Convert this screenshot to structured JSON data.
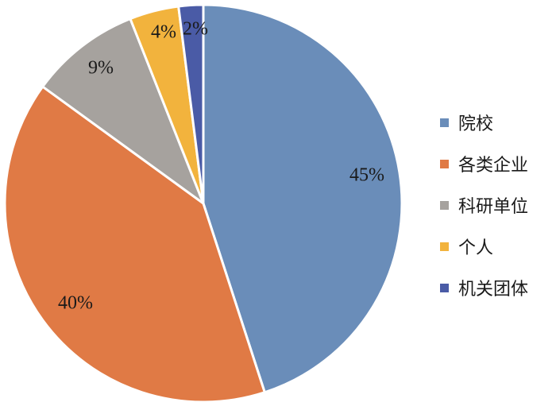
{
  "chart_data": {
    "type": "pie",
    "title": "",
    "categories": [
      "院校",
      "各类企业",
      "科研单位",
      "个人",
      "机关团体"
    ],
    "values": [
      45,
      40,
      9,
      4,
      2
    ],
    "labels": [
      "45%",
      "40%",
      "9%",
      "4%",
      "2%"
    ],
    "colors": [
      "#6A8DB9",
      "#E07A45",
      "#A6A29E",
      "#F2B33D",
      "#4A5BA6"
    ],
    "legend_position": "right"
  }
}
